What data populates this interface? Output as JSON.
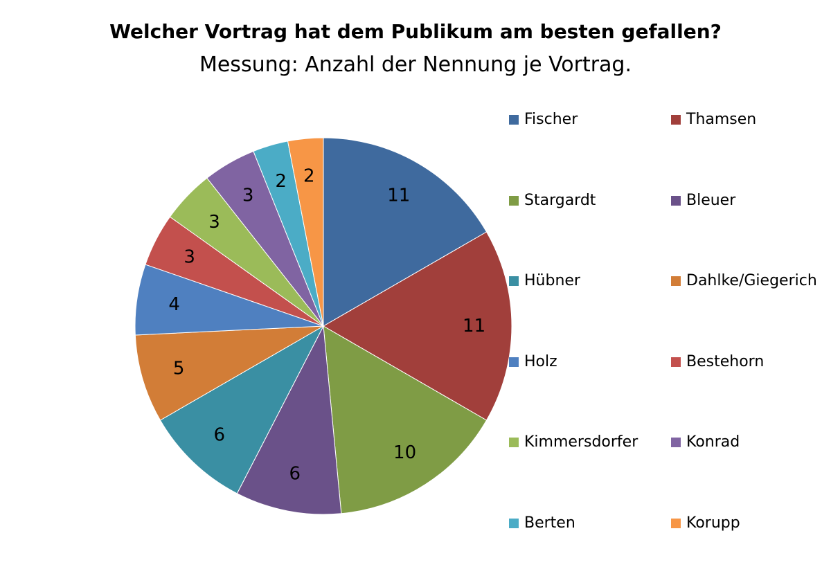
{
  "chart_data": {
    "type": "pie",
    "title": "Welcher Vortrag hat dem Publikum am besten gefallen?",
    "subtitle": "Messung: Anzahl der Nennung je Vortrag.",
    "legend_position": "right",
    "slices": [
      {
        "label": "Fischer",
        "value": 11,
        "color": "#3F6A9E"
      },
      {
        "label": "Thamsen",
        "value": 11,
        "color": "#A13F3B"
      },
      {
        "label": "Stargardt",
        "value": 10,
        "color": "#7F9C45"
      },
      {
        "label": "Bleuer",
        "value": 6,
        "color": "#6A5189"
      },
      {
        "label": "Hübner",
        "value": 6,
        "color": "#3A8FA3"
      },
      {
        "label": "Dahlke/Giegerich",
        "value": 5,
        "color": "#D27D37"
      },
      {
        "label": "Holz",
        "value": 4,
        "color": "#4F80C0"
      },
      {
        "label": "Bestehorn",
        "value": 3,
        "color": "#C3504D"
      },
      {
        "label": "Kimmersdorfer",
        "value": 3,
        "color": "#9BBB59"
      },
      {
        "label": "Konrad",
        "value": 3,
        "color": "#8064A2"
      },
      {
        "label": "Berten",
        "value": 2,
        "color": "#4BACC6"
      },
      {
        "label": "Korupp",
        "value": 2,
        "color": "#F79646"
      }
    ]
  }
}
